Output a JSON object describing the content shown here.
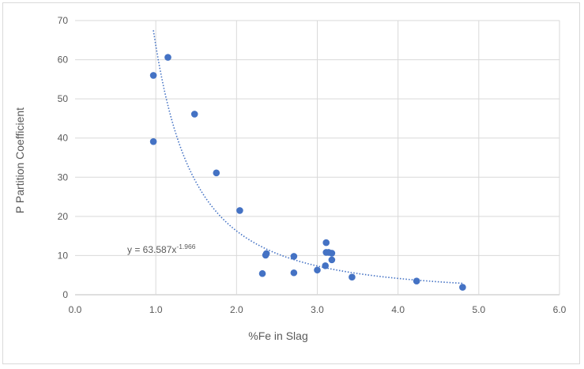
{
  "chart_data": {
    "type": "scatter",
    "title": "",
    "xlabel": "%Fe in Slag",
    "ylabel": "P Partition Coefficient",
    "xlim": [
      0,
      6
    ],
    "ylim": [
      0,
      70
    ],
    "xticks": [
      0,
      1,
      2,
      3,
      4,
      5,
      6
    ],
    "yticks": [
      0,
      10,
      20,
      30,
      40,
      50,
      60,
      70
    ],
    "x_tick_labels": [
      "0.0",
      "1.0",
      "2.0",
      "3.0",
      "4.0",
      "5.0",
      "6.0"
    ],
    "y_tick_labels": [
      "0",
      "10",
      "20",
      "30",
      "40",
      "50",
      "60",
      "70"
    ],
    "grid": true,
    "legend": "none",
    "series": [
      {
        "name": "data",
        "color": "#4472c4",
        "points": [
          [
            0.97,
            56.0
          ],
          [
            0.97,
            39.1
          ],
          [
            1.15,
            60.6
          ],
          [
            1.48,
            46.1
          ],
          [
            1.75,
            31.1
          ],
          [
            2.04,
            21.5
          ],
          [
            2.32,
            5.4
          ],
          [
            2.36,
            10.1
          ],
          [
            2.37,
            10.5
          ],
          [
            2.71,
            5.6
          ],
          [
            2.71,
            9.8
          ],
          [
            3.0,
            6.3
          ],
          [
            3.1,
            7.4
          ],
          [
            3.11,
            13.3
          ],
          [
            3.11,
            10.8
          ],
          [
            3.14,
            10.8
          ],
          [
            3.18,
            10.6
          ],
          [
            3.18,
            8.9
          ],
          [
            3.43,
            4.5
          ],
          [
            4.23,
            3.5
          ],
          [
            4.8,
            1.9
          ]
        ]
      }
    ],
    "trendline": {
      "type": "power",
      "a": 63.587,
      "b": -1.966,
      "x_range": [
        0.97,
        4.8
      ],
      "color": "#4472c4",
      "label_prefix": "y = 63.587x",
      "label_exponent": "-1.966"
    }
  }
}
